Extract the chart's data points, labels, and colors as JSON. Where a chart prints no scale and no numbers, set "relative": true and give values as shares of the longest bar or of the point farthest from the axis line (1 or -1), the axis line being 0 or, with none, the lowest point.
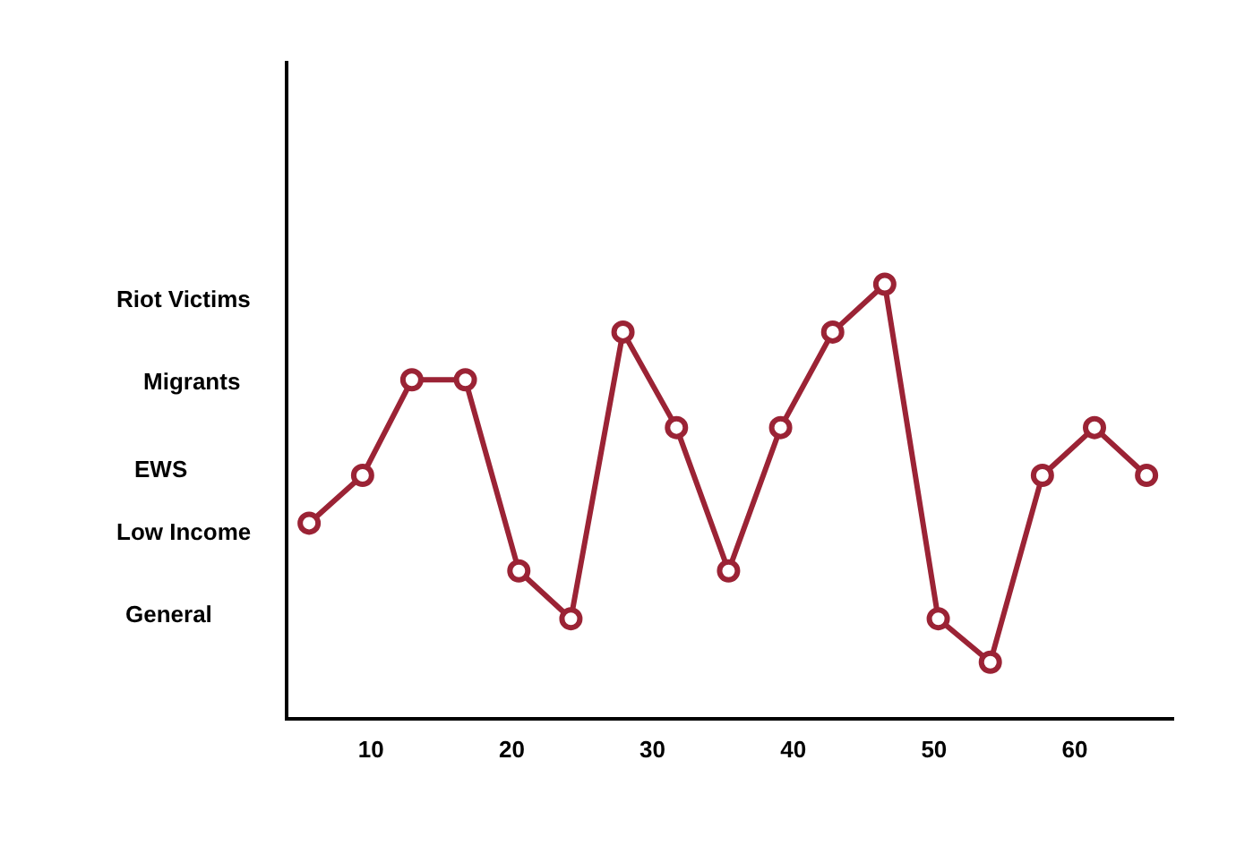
{
  "chart_data": {
    "type": "line",
    "relative": true,
    "x": [
      5.6,
      9.4,
      12.9,
      16.7,
      20.5,
      24.2,
      27.9,
      31.7,
      35.4,
      39.1,
      42.8,
      46.5,
      50.3,
      54.0,
      57.7,
      61.4,
      65.1
    ],
    "series": [
      {
        "color": "#9b2335",
        "values": [
          0.45,
          0.56,
          0.78,
          0.78,
          0.34,
          0.23,
          0.89,
          0.67,
          0.34,
          0.67,
          0.89,
          1,
          0.23,
          0.13,
          0.56,
          0.67,
          0.56
        ]
      }
    ],
    "xlim": [
      4,
      67
    ],
    "xticks": [
      10,
      20,
      30,
      40,
      50,
      60
    ],
    "annotations": [
      "Riot Victims",
      "Migrants",
      "EWS",
      "Low Income",
      "General"
    ],
    "marker": "circle"
  }
}
